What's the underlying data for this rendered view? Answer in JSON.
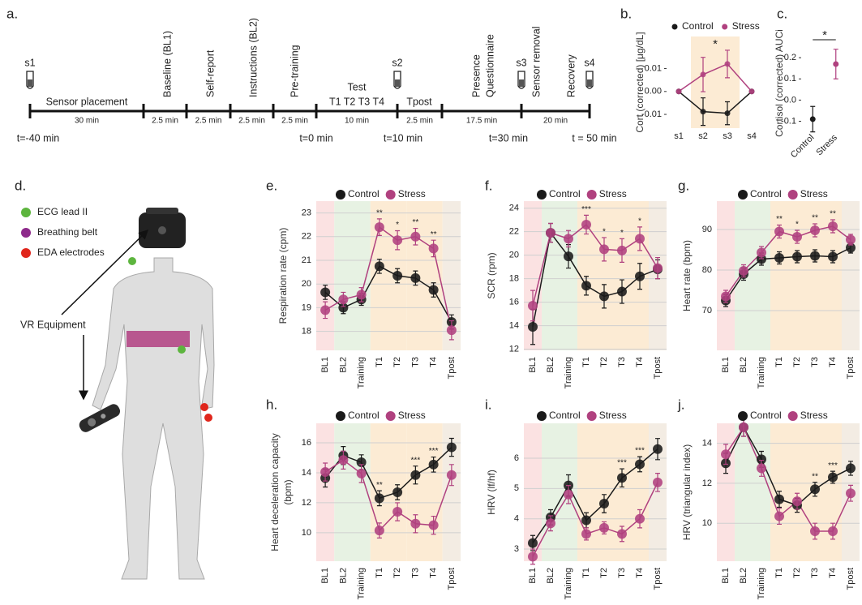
{
  "panel_labels": [
    "a.",
    "b.",
    "c.",
    "d.",
    "e.",
    "f.",
    "g.",
    "h.",
    "i.",
    "j."
  ],
  "timeline": {
    "segments": [
      {
        "labels": [
          "Sensor placement"
        ],
        "duration": "30 min"
      },
      {
        "labels": [
          "Baseline (BL1)"
        ],
        "duration": "2.5 min"
      },
      {
        "labels": [
          "Self-report"
        ],
        "duration": "2.5 min"
      },
      {
        "labels": [
          "Instructions (BL2)"
        ],
        "duration": "2.5 min"
      },
      {
        "labels": [
          "Pre-training"
        ],
        "duration": "2.5 min"
      },
      {
        "labels": [
          "Test",
          "T1 T2 T3 T4"
        ],
        "duration": "10 min"
      },
      {
        "labels": [
          "Tpost"
        ],
        "duration": "2.5 min"
      },
      {
        "labels": [
          "Presence",
          "Questionnaire"
        ],
        "duration": "17.5 min"
      },
      {
        "labels": [
          "Sensor removal",
          "Recovery"
        ],
        "duration": "20 min"
      }
    ],
    "samples": [
      "s1",
      "s2",
      "s3",
      "s4"
    ],
    "times": [
      "t=-40 min",
      "t=0 min",
      "t=10 min",
      "t=30 min",
      "t = 50 min"
    ]
  },
  "body": {
    "legend": [
      {
        "label": "ECG lead II",
        "color": "#5db53e"
      },
      {
        "label": "Breathing belt",
        "color": "#8e2a8b"
      },
      {
        "label": "EDA electrodes",
        "color": "#e0261c"
      }
    ],
    "annotation": "VR Equipment"
  },
  "chart_data": [
    {
      "type": "line",
      "ylabel": "Cort (corrected) [μg/dL]",
      "categories": [
        "s1",
        "s2",
        "s3",
        "s4"
      ],
      "series": [
        {
          "name": "Control",
          "color": "#1a1a1a",
          "values": [
            0,
            -0.0088,
            -0.0095,
            0
          ],
          "errors": [
            0,
            0.006,
            0.005,
            0
          ]
        },
        {
          "name": "Stress",
          "color": "#b0417f",
          "values": [
            0,
            0.0074,
            0.012,
            0
          ],
          "errors": [
            0,
            0.0075,
            0.006,
            0
          ]
        }
      ],
      "ylim": [
        -0.016,
        0.024
      ],
      "yticks": [
        0.01,
        {
          "value": 0,
          "label": "0.00"
        },
        -0.01
      ],
      "grid": false,
      "annotation": "*"
    },
    {
      "type": "point",
      "ylabel": "Cortisol (corrected) AUCi",
      "categories": [
        "Control",
        "Stress"
      ],
      "values": [
        -0.09,
        0.17
      ],
      "errors": [
        0.06,
        0.07
      ],
      "colors": [
        "#1a1a1a",
        "#b0417f"
      ],
      "ylim": [
        -0.14,
        0.3
      ],
      "yticks": [
        0.2,
        0.1,
        {
          "value": 0,
          "label": "0.0"
        },
        -0.1
      ],
      "grid": false,
      "annotation": "*"
    },
    {
      "type": "line",
      "ylabel": "Respiration rate (cpm)",
      "categories": [
        "BL1",
        "BL2",
        "Training",
        "T1",
        "T2",
        "T3",
        "T4",
        "Tpost"
      ],
      "series": [
        {
          "name": "Control",
          "color": "#1a1a1a",
          "values": [
            19.65,
            19.0,
            19.35,
            20.75,
            20.35,
            20.25,
            19.75,
            18.4
          ],
          "errors": [
            0.3,
            0.25,
            0.25,
            0.3,
            0.3,
            0.3,
            0.3,
            0.3
          ]
        },
        {
          "name": "Stress",
          "color": "#b0417f",
          "values": [
            18.9,
            19.35,
            19.55,
            22.4,
            21.85,
            22.0,
            21.5,
            18.05
          ],
          "errors": [
            0.35,
            0.3,
            0.3,
            0.35,
            0.4,
            0.35,
            0.35,
            0.4
          ]
        }
      ],
      "significance": [
        null,
        null,
        null,
        "**",
        "*",
        "**",
        "**",
        null
      ],
      "ylim": [
        17.2,
        23.5
      ],
      "yticks": [
        18,
        19,
        20,
        21,
        22,
        23
      ],
      "grid": true
    },
    {
      "type": "line",
      "ylabel": "SCR (rpm)",
      "categories": [
        "BL1",
        "BL2",
        "Training",
        "T1",
        "T2",
        "T3",
        "T4",
        "Tpost"
      ],
      "series": [
        {
          "name": "Control",
          "color": "#1a1a1a",
          "values": [
            13.9,
            21.9,
            19.9,
            17.4,
            16.5,
            16.9,
            18.2,
            18.8
          ],
          "errors": [
            1.5,
            0.8,
            1.0,
            0.8,
            1.0,
            1.0,
            1.1,
            0.8
          ]
        },
        {
          "name": "Stress",
          "color": "#b0417f",
          "values": [
            15.7,
            21.9,
            21.4,
            22.6,
            20.5,
            20.4,
            21.4,
            18.9
          ],
          "errors": [
            1.3,
            0.8,
            0.7,
            0.8,
            1.0,
            1.0,
            1.0,
            0.9
          ]
        }
      ],
      "significance": [
        null,
        null,
        null,
        "***",
        "*",
        "*",
        "*",
        null
      ],
      "ylim": [
        11.9,
        24.6
      ],
      "yticks": [
        12,
        14,
        16,
        18,
        20,
        22,
        24
      ],
      "grid": true
    },
    {
      "type": "line",
      "ylabel": "Heart rate (bpm)",
      "categories": [
        "BL1",
        "BL2",
        "Training",
        "T1",
        "T2",
        "T3",
        "T4",
        "Tpost"
      ],
      "series": [
        {
          "name": "Control",
          "color": "#1a1a1a",
          "values": [
            72.5,
            79.0,
            82.7,
            83.0,
            83.3,
            83.5,
            83.3,
            85.5
          ],
          "errors": [
            1.5,
            1.5,
            1.5,
            1.5,
            1.5,
            1.5,
            1.5,
            1.3
          ]
        },
        {
          "name": "Stress",
          "color": "#b0417f",
          "values": [
            73.5,
            79.8,
            84.3,
            89.5,
            88.2,
            89.8,
            90.8,
            87.5
          ],
          "errors": [
            1.5,
            1.5,
            1.5,
            1.6,
            1.6,
            1.6,
            1.6,
            1.3
          ]
        }
      ],
      "significance": [
        null,
        null,
        null,
        "**",
        "*",
        "**",
        "**",
        null
      ],
      "ylim": [
        60.2,
        97
      ],
      "yticks": [
        70,
        80,
        90
      ],
      "grid": true
    },
    {
      "type": "line",
      "ylabel": [
        "Heart deceleration capacity",
        "(bpm)"
      ],
      "categories": [
        "BL1",
        "BL2",
        "Training",
        "T1",
        "T2",
        "T3",
        "T4",
        "Tpost"
      ],
      "series": [
        {
          "name": "Control",
          "color": "#1a1a1a",
          "values": [
            13.65,
            15.15,
            14.7,
            12.3,
            12.7,
            13.85,
            14.55,
            15.7
          ],
          "errors": [
            0.6,
            0.6,
            0.5,
            0.5,
            0.5,
            0.6,
            0.5,
            0.6
          ]
        },
        {
          "name": "Stress",
          "color": "#b0417f",
          "values": [
            14.05,
            14.85,
            13.95,
            10.15,
            11.4,
            10.6,
            10.5,
            13.85
          ],
          "errors": [
            0.6,
            0.6,
            0.6,
            0.5,
            0.6,
            0.6,
            0.6,
            0.7
          ]
        }
      ],
      "significance": [
        null,
        null,
        null,
        "**",
        null,
        "***",
        "***",
        null
      ],
      "ylim": [
        8.1,
        17.3
      ],
      "yticks": [
        10,
        12,
        14,
        16
      ],
      "grid": true
    },
    {
      "type": "line",
      "ylabel": "HRV (lf/hf)",
      "categories": [
        "BL1",
        "BL2",
        "Training",
        "T1",
        "T2",
        "T3",
        "T4",
        "Tpost"
      ],
      "series": [
        {
          "name": "Control",
          "color": "#1a1a1a",
          "values": [
            3.2,
            4.05,
            5.1,
            3.95,
            4.5,
            5.35,
            5.8,
            6.3
          ],
          "errors": [
            0.25,
            0.25,
            0.35,
            0.25,
            0.3,
            0.3,
            0.25,
            0.35
          ]
        },
        {
          "name": "Stress",
          "color": "#b0417f",
          "values": [
            2.75,
            3.85,
            4.8,
            3.5,
            3.7,
            3.5,
            4.0,
            5.2
          ],
          "errors": [
            0.25,
            0.25,
            0.3,
            0.2,
            0.2,
            0.25,
            0.3,
            0.3
          ]
        }
      ],
      "significance": [
        null,
        null,
        null,
        null,
        null,
        "***",
        "***",
        null
      ],
      "ylim": [
        2.6,
        7.15
      ],
      "yticks": [
        3,
        4,
        5,
        6
      ],
      "grid": true
    },
    {
      "type": "line",
      "ylabel": "HRV (triangular index)",
      "categories": [
        "BL1",
        "BL2",
        "Training",
        "T1",
        "T2",
        "T3",
        "T4",
        "Tpost"
      ],
      "series": [
        {
          "name": "Control",
          "color": "#1a1a1a",
          "values": [
            13.0,
            14.8,
            13.2,
            11.2,
            10.9,
            11.7,
            12.3,
            12.75
          ],
          "errors": [
            0.5,
            0.45,
            0.4,
            0.4,
            0.35,
            0.35,
            0.3,
            0.35
          ]
        },
        {
          "name": "Stress",
          "color": "#b0417f",
          "values": [
            13.45,
            14.8,
            12.75,
            10.35,
            11.1,
            9.6,
            9.6,
            11.5
          ],
          "errors": [
            0.5,
            0.45,
            0.4,
            0.4,
            0.4,
            0.4,
            0.4,
            0.4
          ]
        }
      ],
      "significance": [
        null,
        null,
        null,
        null,
        null,
        "**",
        "***",
        null
      ],
      "ylim": [
        8.1,
        15.0
      ],
      "yticks": [
        10,
        12,
        14
      ],
      "grid": true
    }
  ]
}
